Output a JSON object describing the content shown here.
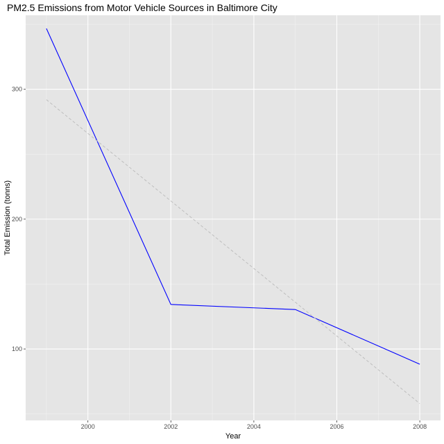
{
  "chart_data": {
    "type": "line",
    "title": "PM2.5 Emissions from Motor Vehicle Sources in Baltimore City",
    "xlabel": "Year",
    "ylabel": "Total Emission (tonns)",
    "xlim": [
      1998.5,
      2008.5
    ],
    "ylim": [
      45,
      357
    ],
    "x_ticks": [
      2000,
      2002,
      2004,
      2006,
      2008
    ],
    "x_tick_labels": [
      "2000",
      "2002",
      "2004",
      "2006",
      "2008"
    ],
    "y_ticks": [
      100,
      200,
      300
    ],
    "y_tick_labels": [
      "100",
      "200",
      "300"
    ],
    "grid": true,
    "series": [
      {
        "name": "Total Emission",
        "style": "solid",
        "color": "#0000ff",
        "x": [
          1999,
          2002,
          2005,
          2008
        ],
        "values": [
          346.8,
          134.3,
          130.4,
          88.3
        ]
      },
      {
        "name": "Linear trend",
        "style": "dashed",
        "color": "#bebebe",
        "x": [
          1999,
          2008
        ],
        "values": [
          292,
          58
        ]
      }
    ]
  },
  "colors": {
    "panel_background": "#e5e5e5",
    "grid_major": "#ffffff",
    "grid_minor": "#f2f2f2",
    "tick_text": "#4d4d4d"
  }
}
